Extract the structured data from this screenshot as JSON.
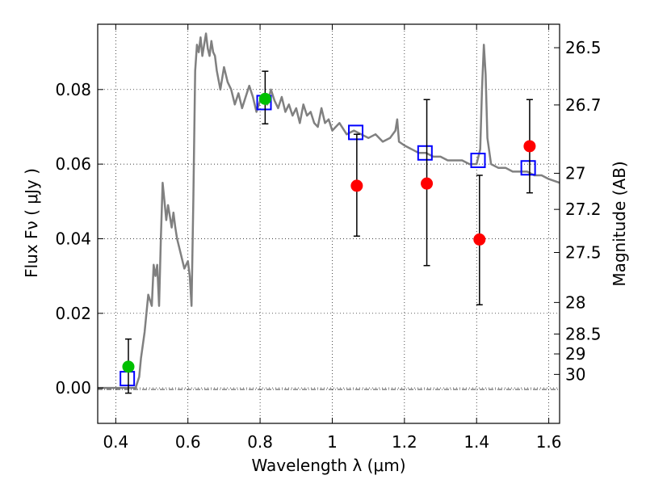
{
  "chart_data": {
    "type": "scatter",
    "xlabel": "Wavelength  λ (μm)",
    "ylabel": "Flux  Fν  ( μJy )",
    "y2label": "Magnitude (AB)",
    "xlim": [
      0.35,
      1.63
    ],
    "ylim": [
      -0.0095,
      0.0975
    ],
    "x_ticks": [
      {
        "v": 0.4,
        "label": "0.4"
      },
      {
        "v": 0.6,
        "label": "0.6"
      },
      {
        "v": 0.8,
        "label": "0.8"
      },
      {
        "v": 1.0,
        "label": "1"
      },
      {
        "v": 1.2,
        "label": "1.2"
      },
      {
        "v": 1.4,
        "label": "1.4"
      },
      {
        "v": 1.6,
        "label": "1.6"
      }
    ],
    "y_ticks": [
      {
        "v": 0.0,
        "label": "0.00"
      },
      {
        "v": 0.02,
        "label": "0.02"
      },
      {
        "v": 0.04,
        "label": "0.04"
      },
      {
        "v": 0.06,
        "label": "0.06"
      },
      {
        "v": 0.08,
        "label": "0.08"
      }
    ],
    "magnitude_ticks": [
      {
        "mag": 26.5,
        "label": "26.5"
      },
      {
        "mag": 26.7,
        "label": "26.7"
      },
      {
        "mag": 27.0,
        "label": "27"
      },
      {
        "mag": 27.2,
        "label": "27.2"
      },
      {
        "mag": 27.5,
        "label": "27.5"
      },
      {
        "mag": 28.0,
        "label": "28"
      },
      {
        "mag": 28.5,
        "label": "28.5"
      },
      {
        "mag": 29.0,
        "label": "29"
      },
      {
        "mag": 30.0,
        "label": "30"
      }
    ],
    "grid": true,
    "series": [
      {
        "kind": "line",
        "color": "#808080",
        "x": [
          0.35,
          0.455,
          0.465,
          0.47,
          0.48,
          0.49,
          0.5,
          0.505,
          0.51,
          0.515,
          0.52,
          0.525,
          0.53,
          0.535,
          0.54,
          0.545,
          0.55,
          0.555,
          0.56,
          0.565,
          0.57,
          0.58,
          0.59,
          0.6,
          0.605,
          0.61,
          0.615,
          0.62,
          0.625,
          0.63,
          0.635,
          0.64,
          0.645,
          0.65,
          0.655,
          0.66,
          0.665,
          0.67,
          0.675,
          0.68,
          0.69,
          0.7,
          0.71,
          0.72,
          0.73,
          0.74,
          0.75,
          0.76,
          0.77,
          0.78,
          0.79,
          0.8,
          0.81,
          0.82,
          0.83,
          0.84,
          0.85,
          0.86,
          0.87,
          0.88,
          0.89,
          0.9,
          0.91,
          0.92,
          0.93,
          0.94,
          0.95,
          0.96,
          0.97,
          0.98,
          0.99,
          1.0,
          1.02,
          1.04,
          1.06,
          1.08,
          1.1,
          1.12,
          1.14,
          1.16,
          1.175,
          1.18,
          1.185,
          1.2,
          1.22,
          1.24,
          1.26,
          1.28,
          1.3,
          1.32,
          1.34,
          1.36,
          1.38,
          1.4,
          1.41,
          1.415,
          1.42,
          1.425,
          1.43,
          1.44,
          1.46,
          1.48,
          1.5,
          1.52,
          1.54,
          1.56,
          1.58,
          1.6,
          1.63
        ],
        "y": [
          0.0,
          0.0,
          0.003,
          0.008,
          0.015,
          0.025,
          0.022,
          0.033,
          0.03,
          0.033,
          0.022,
          0.04,
          0.055,
          0.05,
          0.045,
          0.049,
          0.046,
          0.043,
          0.047,
          0.043,
          0.04,
          0.036,
          0.032,
          0.034,
          0.03,
          0.022,
          0.05,
          0.085,
          0.092,
          0.09,
          0.094,
          0.089,
          0.092,
          0.095,
          0.091,
          0.089,
          0.093,
          0.09,
          0.089,
          0.085,
          0.08,
          0.086,
          0.082,
          0.08,
          0.076,
          0.079,
          0.075,
          0.078,
          0.081,
          0.078,
          0.074,
          0.077,
          0.078,
          0.076,
          0.08,
          0.077,
          0.075,
          0.078,
          0.074,
          0.076,
          0.073,
          0.075,
          0.071,
          0.076,
          0.073,
          0.074,
          0.071,
          0.07,
          0.075,
          0.071,
          0.072,
          0.069,
          0.071,
          0.068,
          0.069,
          0.068,
          0.067,
          0.068,
          0.066,
          0.067,
          0.069,
          0.072,
          0.066,
          0.065,
          0.064,
          0.063,
          0.063,
          0.062,
          0.062,
          0.061,
          0.061,
          0.061,
          0.06,
          0.06,
          0.064,
          0.08,
          0.092,
          0.084,
          0.067,
          0.06,
          0.059,
          0.059,
          0.058,
          0.058,
          0.058,
          0.057,
          0.057,
          0.056,
          0.055
        ]
      },
      {
        "kind": "markers",
        "marker": "open-square",
        "color": "#0000ff",
        "x": [
          0.432,
          0.811,
          1.065,
          1.257,
          1.404,
          1.543
        ],
        "y": [
          0.0025,
          0.0765,
          0.0685,
          0.063,
          0.061,
          0.059
        ]
      },
      {
        "kind": "errorbar",
        "marker": "circle",
        "color": "#00c000",
        "x": [
          0.435,
          0.814
        ],
        "y": [
          0.0057,
          0.0775
        ],
        "yerr_low": [
          0.0071,
          0.0067
        ],
        "yerr_high": [
          0.0074,
          0.0074
        ]
      },
      {
        "kind": "errorbar",
        "marker": "circle",
        "color": "#ff0000",
        "x": [
          1.068,
          1.262,
          1.408,
          1.547
        ],
        "y": [
          0.0542,
          0.0548,
          0.0398,
          0.0648
        ],
        "yerr_low": [
          0.0135,
          0.022,
          0.0175,
          0.0125
        ],
        "yerr_high": [
          0.0138,
          0.0225,
          0.0172,
          0.0125
        ]
      }
    ]
  }
}
